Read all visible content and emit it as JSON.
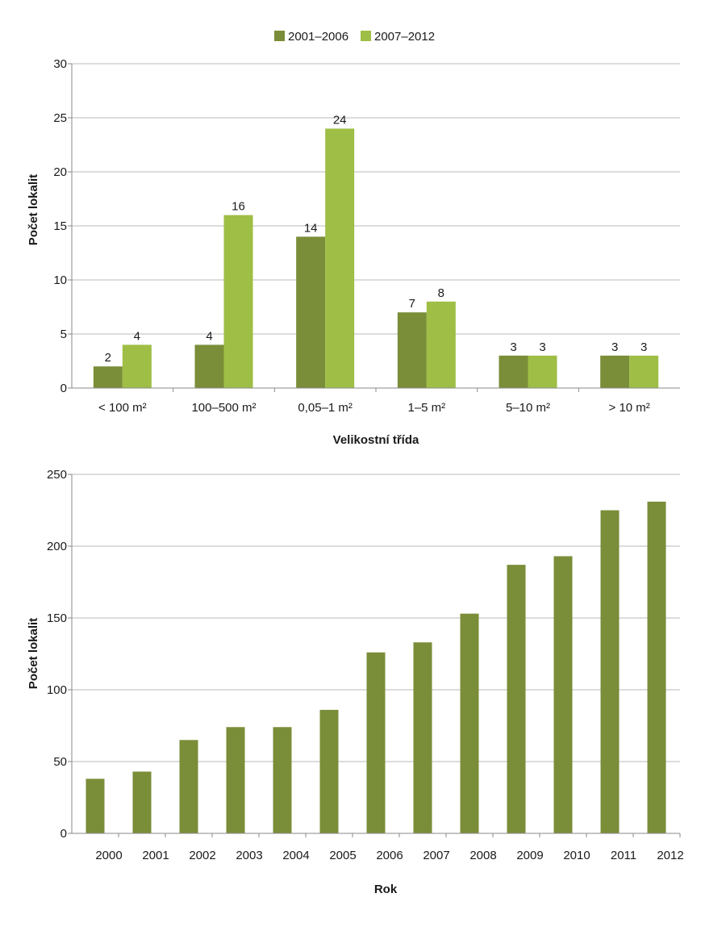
{
  "chart_data": [
    {
      "type": "bar",
      "legend_position": "top",
      "xlabel": "Velikostní třída",
      "ylabel": "Počet lokalit",
      "ylim": [
        0,
        30
      ],
      "yticks": [
        0,
        5,
        10,
        15,
        20,
        25,
        30
      ],
      "grid": true,
      "categories": [
        "< 100 m²",
        "100–500 m²",
        "0,05–1 m²",
        "1–5 m²",
        "5–10 m²",
        "> 10 m²"
      ],
      "series": [
        {
          "name": "2001–2006",
          "color": "#7a8d38",
          "values": [
            2,
            4,
            14,
            7,
            3,
            3
          ]
        },
        {
          "name": "2007–2012",
          "color": "#9fbe45",
          "values": [
            4,
            16,
            24,
            8,
            3,
            3
          ]
        }
      ]
    },
    {
      "type": "bar",
      "xlabel": "Rok",
      "ylabel": "Počet lokalit",
      "ylim": [
        0,
        250
      ],
      "yticks": [
        0,
        50,
        100,
        150,
        200,
        250
      ],
      "grid": true,
      "tick_labels": [
        "2000",
        "2001",
        "2002",
        "2003",
        "2004",
        "2005",
        "2006",
        "2007",
        "2008",
        "2009",
        "2010",
        "2011",
        "2012"
      ],
      "series": [
        {
          "color": "#7a8d38",
          "values": [
            38,
            43,
            65,
            74,
            74,
            86,
            126,
            133,
            153,
            187,
            193,
            225,
            231
          ]
        }
      ]
    }
  ]
}
